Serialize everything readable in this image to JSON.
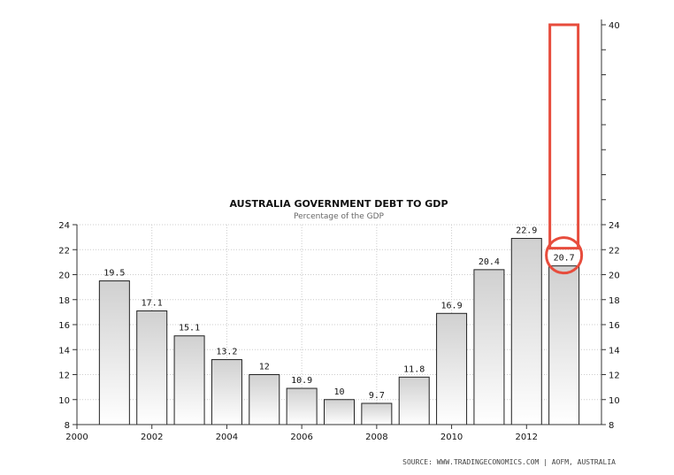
{
  "chart_data": {
    "type": "bar",
    "title": "AUSTRALIA GOVERNMENT DEBT TO GDP",
    "subtitle": "Percentage of the GDP",
    "source": "SOURCE:  WWW.TRADINGECONOMICS.COM  |  AOFM, AUSTRALIA",
    "categories": [
      "2001",
      "2002",
      "2003",
      "2004",
      "2005",
      "2006",
      "2007",
      "2008",
      "2009",
      "2010",
      "2011",
      "2012",
      "2013"
    ],
    "values": [
      19.5,
      17.1,
      15.1,
      13.2,
      12,
      10.9,
      10,
      9.7,
      11.8,
      16.9,
      20.4,
      22.9,
      20.7
    ],
    "labels": [
      "19.5",
      "17.1",
      "15.1",
      "13.2",
      "12",
      "10.9",
      "10",
      "9.7",
      "11.8",
      "16.9",
      "20.4",
      "22.9",
      "20.7"
    ],
    "x_ticks": [
      "2000",
      "2002",
      "2004",
      "2006",
      "2008",
      "2010",
      "2012"
    ],
    "ylim": [
      8,
      24
    ],
    "y_ticks": [
      "8",
      "10",
      "12",
      "14",
      "16",
      "18",
      "20",
      "22",
      "24"
    ],
    "right_axis_extension_ticks": [
      "40"
    ],
    "grid": true,
    "bar_color": "#d0d0d0",
    "highlight_color": "#e74c3c"
  }
}
